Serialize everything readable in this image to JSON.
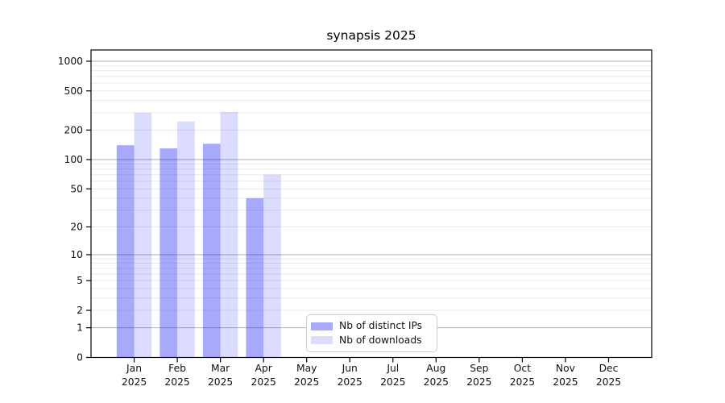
{
  "chart_data": {
    "type": "bar",
    "title": "synapsis 2025",
    "categories": [
      "Jan",
      "Feb",
      "Mar",
      "Apr",
      "May",
      "Jun",
      "Jul",
      "Aug",
      "Sep",
      "Oct",
      "Nov",
      "Dec"
    ],
    "x_year_label": "2025",
    "series": [
      {
        "name": "Nb of distinct IPs",
        "color": "rgba(10,10,245,0.35)",
        "values": [
          140,
          130,
          145,
          40,
          null,
          null,
          null,
          null,
          null,
          null,
          null,
          null
        ]
      },
      {
        "name": "Nb of downloads",
        "color": "rgba(10,10,245,0.14)",
        "values": [
          300,
          245,
          305,
          70,
          null,
          null,
          null,
          null,
          null,
          null,
          null,
          null
        ]
      }
    ],
    "yscale": "symlog",
    "ylim": [
      0,
      1300
    ],
    "yticks": [
      0,
      1,
      2,
      5,
      10,
      20,
      50,
      100,
      200,
      500,
      1000
    ],
    "major_gridlines": [
      1,
      10,
      100,
      1000
    ],
    "grid": true,
    "legend_position": "inside-bottom-center"
  },
  "colors": {
    "axis": "#000000",
    "tick_text": "#111111",
    "grid_major": "#b5b5b5",
    "grid_minor": "#eaeaea",
    "background": "#ffffff"
  }
}
